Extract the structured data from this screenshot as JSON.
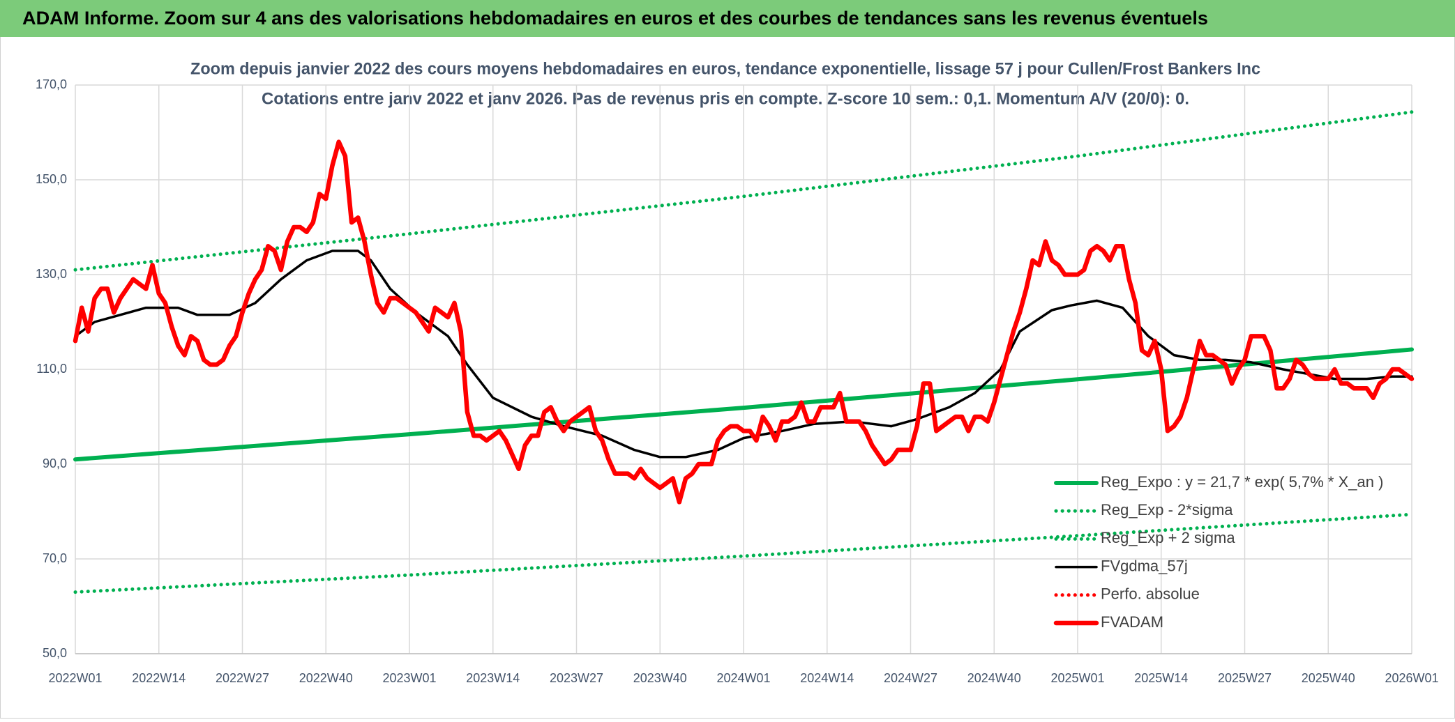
{
  "header": {
    "title": "ADAM Informe. Zoom sur 4 ans des valorisations hebdomadaires en euros et des courbes de tendances sans les revenus éventuels"
  },
  "chart_data": {
    "type": "line",
    "title": "Zoom depuis janvier 2022 des cours moyens hebdomadaires en euros, tendance exponentielle, lissage 57 j pour Cullen/Frost Bankers Inc",
    "subtitle": "Cotations entre janv 2022 et janv 2026. Pas de revenus pris en compte. Z-score 10 sem.: 0,1. Momentum A/V (20/0): 0.",
    "xlim": [
      0,
      208
    ],
    "xticks": [
      {
        "value": 0,
        "label": "2022W01"
      },
      {
        "value": 13,
        "label": "2022W14"
      },
      {
        "value": 26,
        "label": "2022W27"
      },
      {
        "value": 39,
        "label": "2022W40"
      },
      {
        "value": 52,
        "label": "2023W01"
      },
      {
        "value": 65,
        "label": "2023W14"
      },
      {
        "value": 78,
        "label": "2023W27"
      },
      {
        "value": 91,
        "label": "2023W40"
      },
      {
        "value": 104,
        "label": "2024W01"
      },
      {
        "value": 117,
        "label": "2024W14"
      },
      {
        "value": 130,
        "label": "2024W27"
      },
      {
        "value": 143,
        "label": "2024W40"
      },
      {
        "value": 156,
        "label": "2025W01"
      },
      {
        "value": 169,
        "label": "2025W14"
      },
      {
        "value": 182,
        "label": "2025W27"
      },
      {
        "value": 195,
        "label": "2025W40"
      },
      {
        "value": 208,
        "label": "2026W01"
      }
    ],
    "ylim": [
      50,
      170
    ],
    "yticks": [
      {
        "value": 50,
        "label": "50,0"
      },
      {
        "value": 70,
        "label": "70,0"
      },
      {
        "value": 90,
        "label": "90,0"
      },
      {
        "value": 110,
        "label": "110,0"
      },
      {
        "value": 130,
        "label": "130,0"
      },
      {
        "value": 150,
        "label": "150,0"
      },
      {
        "value": 170,
        "label": "170,0"
      }
    ],
    "grid": true,
    "legend": "lower-right",
    "series": [
      {
        "name": "Reg_Expo : y = 21,7 * exp( 5,7% *  X_an )",
        "color": "#00b050",
        "style": "solid",
        "x": [
          0,
          52,
          104,
          156,
          208
        ],
        "values": [
          91,
          96.3,
          101.9,
          107.9,
          114.2
        ]
      },
      {
        "name": "Reg_Exp - 2*sigma",
        "color": "#00b050",
        "style": "dotted",
        "x": [
          0,
          52,
          104,
          156,
          208
        ],
        "values": [
          63,
          66.6,
          70.6,
          74.9,
          79.4
        ]
      },
      {
        "name": "Reg_Exp + 2 sigma",
        "color": "#00b050",
        "style": "dotted",
        "x": [
          0,
          52,
          104,
          156,
          208
        ],
        "values": [
          131,
          138.6,
          146.5,
          155,
          164.3
        ]
      },
      {
        "name": "FVgdma_57j",
        "color": "#000000",
        "style": "thin",
        "x": [
          0,
          3,
          7,
          11,
          16,
          19,
          24,
          28,
          32,
          36,
          40,
          44,
          46,
          49,
          53,
          58,
          61,
          65,
          71,
          76,
          82,
          87,
          91,
          95,
          100,
          104,
          110,
          115,
          121,
          127,
          131,
          136,
          140,
          144,
          147,
          152,
          155,
          159,
          163,
          167,
          171,
          175,
          179,
          183,
          188,
          192,
          196,
          201,
          205,
          208
        ],
        "values": [
          117,
          120,
          121.5,
          123,
          123,
          121.5,
          121.5,
          124,
          129,
          133,
          135,
          135,
          133,
          127,
          122,
          117,
          111,
          104,
          100,
          98,
          96,
          93,
          91.5,
          91.5,
          93,
          95.5,
          97,
          98.5,
          99,
          98,
          99.5,
          102,
          105,
          110,
          118,
          122.5,
          123.5,
          124.5,
          123,
          117,
          113,
          112,
          112,
          111.5,
          110,
          109,
          108,
          108,
          108.5,
          108.5
        ]
      },
      {
        "name": "Perfo. absolue",
        "color": "#ff0000",
        "style": "dotted",
        "x": [],
        "values": []
      },
      {
        "name": "FVADAM",
        "color": "#ff0000",
        "style": "thick",
        "x": [
          0,
          1,
          2,
          3,
          4,
          5,
          6,
          7,
          8,
          9,
          10,
          11,
          12,
          13,
          14,
          15,
          16,
          17,
          18,
          19,
          20,
          21,
          22,
          23,
          24,
          25,
          26,
          27,
          28,
          29,
          30,
          31,
          32,
          33,
          34,
          35,
          36,
          37,
          38,
          39,
          40,
          41,
          42,
          43,
          44,
          45,
          46,
          47,
          48,
          49,
          50,
          51,
          52,
          53,
          54,
          55,
          56,
          57,
          58,
          59,
          60,
          61,
          62,
          63,
          64,
          65,
          66,
          67,
          68,
          69,
          70,
          71,
          72,
          73,
          74,
          75,
          76,
          77,
          78,
          79,
          80,
          81,
          82,
          83,
          84,
          85,
          86,
          87,
          88,
          89,
          90,
          91,
          92,
          93,
          94,
          95,
          96,
          97,
          98,
          99,
          100,
          101,
          102,
          103,
          104,
          105,
          106,
          107,
          108,
          109,
          110,
          111,
          112,
          113,
          114,
          115,
          116,
          117,
          118,
          119,
          120,
          121,
          122,
          123,
          124,
          125,
          126,
          127,
          128,
          129,
          130,
          131,
          132,
          133,
          134,
          135,
          136,
          137,
          138,
          139,
          140,
          141,
          142,
          143,
          144,
          145,
          146,
          147,
          148,
          149,
          150,
          151,
          152,
          153,
          154,
          155,
          156,
          157,
          158,
          159,
          160,
          161,
          162,
          163,
          164,
          165,
          166,
          167,
          168,
          169,
          170,
          171,
          172,
          173,
          174,
          175,
          176,
          177,
          178,
          179,
          180,
          181,
          182,
          183,
          184,
          185,
          186,
          187,
          188,
          189,
          190,
          191,
          192,
          193,
          194,
          195,
          196,
          197,
          198,
          199,
          200,
          201,
          202,
          203,
          204,
          205,
          206,
          207,
          208
        ],
        "values": [
          116,
          123,
          118,
          125,
          127,
          127,
          122,
          125,
          127,
          129,
          128,
          127,
          132,
          126,
          124,
          119,
          115,
          113,
          117,
          116,
          112,
          111,
          111,
          112,
          115,
          117,
          122,
          126,
          129,
          131,
          136,
          135,
          131,
          137,
          140,
          140,
          139,
          141,
          147,
          146,
          153,
          158,
          155,
          141,
          142,
          137,
          130,
          124,
          122,
          125,
          125,
          124,
          123,
          122,
          120,
          118,
          123,
          122,
          121,
          124,
          118,
          101,
          96,
          96,
          95,
          96,
          97,
          95,
          92,
          89,
          94,
          96,
          96,
          101,
          102,
          99,
          97,
          99,
          100,
          101,
          102,
          97,
          95,
          91,
          88,
          88,
          88,
          87,
          89,
          87,
          86,
          85,
          86,
          87,
          82,
          87,
          88,
          90,
          90,
          90,
          95,
          97,
          98,
          98,
          97,
          97,
          95,
          100,
          98,
          95,
          99,
          99,
          100,
          103,
          99,
          99,
          102,
          102,
          102,
          105,
          99,
          99,
          99,
          97,
          94,
          92,
          90,
          91,
          93,
          93,
          93,
          98,
          107,
          107,
          97,
          98,
          99,
          100,
          100,
          97,
          100,
          100,
          99,
          103,
          108,
          113,
          118,
          122,
          127,
          133,
          132,
          137,
          133,
          132,
          130,
          130,
          130,
          131,
          135,
          136,
          135,
          133,
          136,
          136,
          129,
          124,
          114,
          113,
          116,
          110,
          97,
          98,
          100,
          104,
          110,
          116,
          113,
          113,
          112,
          111,
          107,
          110,
          112,
          117,
          117,
          117,
          114,
          106,
          106,
          108,
          112,
          111,
          109,
          108,
          108,
          108,
          110,
          107,
          107,
          106,
          106,
          106,
          104,
          107,
          108,
          110,
          110,
          109,
          108
        ]
      }
    ]
  }
}
